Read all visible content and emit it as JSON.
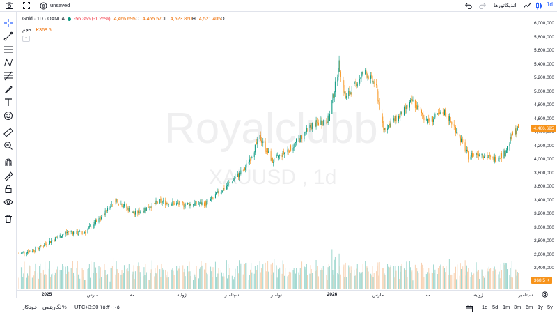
{
  "topbar": {
    "camera_icon": "camera-icon",
    "fullscreen_icon": "fullscreen-icon",
    "settings_icon": "settings-icon",
    "unsaved_label": "unsaved",
    "indicators_label": "اندیکاتورها",
    "interval_label": "1d"
  },
  "legend": {
    "symbol": "Gold · 1D · OANDA",
    "change": "-56.355 (-1.25%)",
    "close_value": "4,466.695",
    "close_label": "C",
    "low_value": "4,465.570",
    "low_label": "L",
    "high_value": "4,523.860",
    "high_label": "H",
    "open_value": "4,521.405",
    "open_label": "O",
    "volume_label": "حجم",
    "volume_value": "K368.5",
    "collapse_glyph": "^"
  },
  "watermark": {
    "brand": "Royalclubb",
    "symbol": "XAUUSD , 1d"
  },
  "price_axis": {
    "ticks": [
      "6,000,000",
      "5,800,000",
      "5,600,000",
      "5,400,000",
      "5,200,000",
      "5,000,000",
      "4,800,000",
      "4,600,000",
      "4,400,000",
      "4,200,000",
      "4,000,000",
      "3,800,000",
      "3,600,000",
      "3,400,000",
      "3,200,000",
      "3,000,000",
      "2,800,000",
      "2,600,000",
      "2,400,000"
    ],
    "last_price": "4,466.695",
    "last_volume": "368.5 K"
  },
  "time_axis": {
    "ticks": [
      {
        "label": "2025",
        "bold": true
      },
      {
        "label": "مارس",
        "bold": false
      },
      {
        "label": "مه",
        "bold": false
      },
      {
        "label": "ژوئیه",
        "bold": false
      },
      {
        "label": "سپتامبر",
        "bold": false
      },
      {
        "label": "نوامبر",
        "bold": false
      },
      {
        "label": "2026",
        "bold": true
      },
      {
        "label": "مارس",
        "bold": false
      },
      {
        "label": "مه",
        "bold": false
      },
      {
        "label": "ژوئیه",
        "bold": false
      },
      {
        "label": "سپتامبر",
        "bold": false
      }
    ]
  },
  "bottombar": {
    "auto_label": "خودکار",
    "log_label": "لگاریتمی",
    "percent_label": "%",
    "timezone": "UTC+3:30 ۱۵:۳۰:۰۵",
    "ranges": [
      "1d",
      "5d",
      "1m",
      "3m",
      "6m",
      "1y",
      "5y"
    ]
  },
  "colors": {
    "up": "#089981",
    "down": "#f7931a",
    "up_volume": "#9ed7cf",
    "down_volume": "#f8d2b3",
    "accent": "#2962ff"
  },
  "chart_data": {
    "type": "candlestick",
    "ylim": [
      2350,
      6000
    ],
    "y_unit_ticks": [
      2400,
      2600,
      2800,
      3000,
      3200,
      3400,
      3600,
      3800,
      4000,
      4200,
      4400,
      4600,
      4800,
      5000,
      5200,
      5400,
      5600,
      5800,
      6000
    ],
    "x_range": [
      "2024-12-20",
      "2026-09-15"
    ],
    "last": {
      "open": 4521.405,
      "high": 4523.86,
      "low": 4465.57,
      "close": 4466.695,
      "volume": 368500
    },
    "anchors": [
      [
        "2024-12-20",
        2620
      ],
      [
        "2025-01-10",
        2680
      ],
      [
        "2025-02-20",
        2940
      ],
      [
        "2025-03-10",
        2910
      ],
      [
        "2025-04-01",
        3120
      ],
      [
        "2025-04-20",
        3420
      ],
      [
        "2025-05-15",
        3200
      ],
      [
        "2025-06-15",
        3380
      ],
      [
        "2025-07-15",
        3340
      ],
      [
        "2025-08-15",
        3360
      ],
      [
        "2025-09-01",
        3540
      ],
      [
        "2025-10-01",
        3860
      ],
      [
        "2025-10-20",
        4330
      ],
      [
        "2025-11-05",
        3970
      ],
      [
        "2025-12-01",
        4200
      ],
      [
        "2025-12-25",
        4510
      ],
      [
        "2026-01-15",
        4600
      ],
      [
        "2026-01-28",
        5400
      ],
      [
        "2026-02-05",
        4900
      ],
      [
        "2026-02-20",
        5150
      ],
      [
        "2026-03-01",
        5300
      ],
      [
        "2026-03-15",
        5100
      ],
      [
        "2026-03-25",
        4450
      ],
      [
        "2026-04-15",
        4650
      ],
      [
        "2026-04-30",
        4860
      ],
      [
        "2026-05-20",
        4560
      ],
      [
        "2026-06-10",
        4700
      ],
      [
        "2026-06-25",
        4430
      ],
      [
        "2026-07-10",
        4050
      ],
      [
        "2026-07-25",
        4100
      ],
      [
        "2026-08-10",
        4000
      ],
      [
        "2026-08-25",
        4100
      ],
      [
        "2026-09-05",
        4400
      ],
      [
        "2026-09-12",
        4466
      ]
    ]
  }
}
